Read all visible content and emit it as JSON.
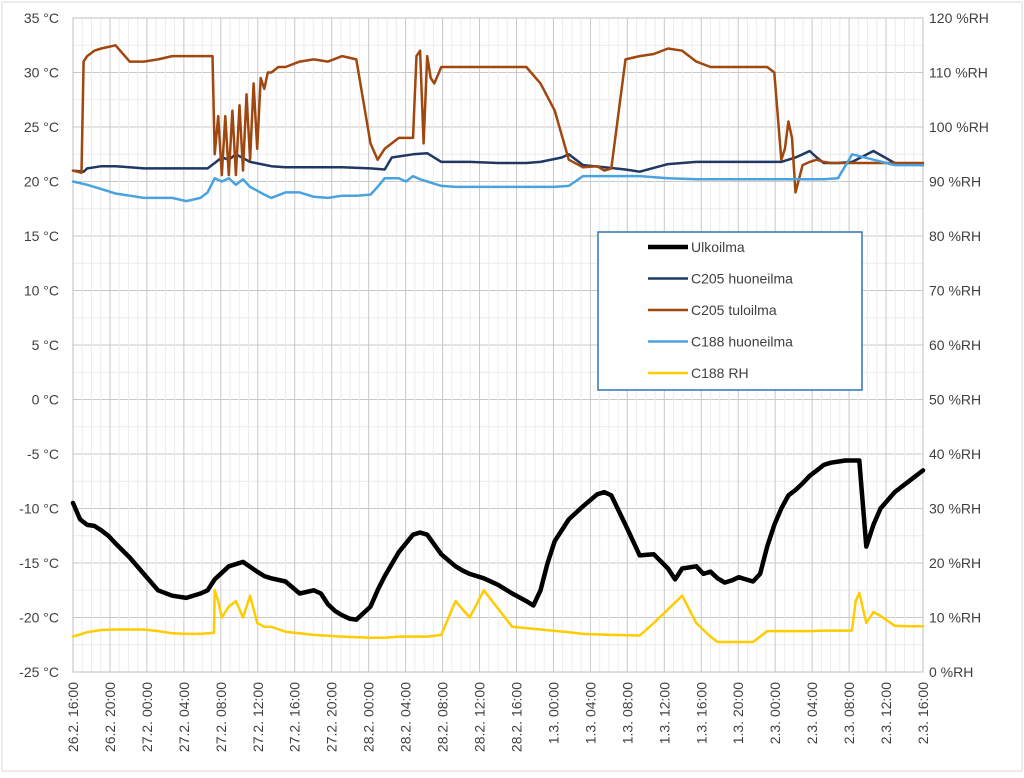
{
  "chart_data": {
    "type": "line",
    "title": "",
    "xlabel": "",
    "ylabel": "",
    "y_axis_left": {
      "unit": "°C",
      "min": -25,
      "max": 35,
      "step": 5,
      "tick_labels": [
        "35 °C",
        "30 °C",
        "25 °C",
        "20 °C",
        "15 °C",
        "10 °C",
        "5 °C",
        "0 °C",
        "-5 °C",
        "-10 °C",
        "-15 °C",
        "-20 °C",
        "-25 °C"
      ]
    },
    "y_axis_right": {
      "unit": "%RH",
      "min": 0,
      "max": 120,
      "step": 10,
      "tick_labels": [
        "120 %RH",
        "110 %RH",
        "100 %RH",
        "90 %RH",
        "80 %RH",
        "70 %RH",
        "60 %RH",
        "50 %RH",
        "40 %RH",
        "30 %RH",
        "20 %RH",
        "10 %RH",
        "0 %RH"
      ]
    },
    "x_axis": {
      "unit": "hours",
      "min": 0,
      "max": 120,
      "tick_labels": [
        "26.2. 16:00",
        "26.2. 20:00",
        "27.2. 00:00",
        "27.2. 04:00",
        "27.2. 08:00",
        "27.2. 12:00",
        "27.2. 16:00",
        "27.2. 20:00",
        "28.2. 00:00",
        "28.2. 04:00",
        "28.2. 08:00",
        "28.2. 12:00",
        "28.2. 16:00",
        "1.3. 00:00",
        "1.3. 04:00",
        "1.3. 08:00",
        "1.3. 12:00",
        "1.3. 16:00",
        "1.3. 20:00",
        "2.3. 00:00",
        "2.3. 04:00",
        "2.3. 08:00",
        "2.3. 12:00",
        "2.3. 16:00"
      ]
    },
    "grid": true,
    "legend": "center-right",
    "series": [
      {
        "name": "Ulkoilma",
        "axis": "left",
        "color": "#000000",
        "width": 4.5,
        "x": [
          0,
          1,
          2,
          3,
          4,
          5,
          6,
          8,
          10,
          12,
          14,
          16,
          18,
          19,
          20,
          22,
          24,
          26,
          27,
          28,
          30,
          32,
          34,
          35,
          36,
          37,
          38,
          39,
          40,
          42,
          43,
          44,
          46,
          48,
          49,
          50,
          52,
          54,
          55,
          56,
          58,
          60,
          62,
          64,
          65,
          66,
          67,
          68,
          70,
          72,
          74,
          75,
          76,
          78,
          80,
          82,
          84,
          85,
          86,
          88,
          89,
          90,
          91,
          92,
          93,
          94,
          95,
          96,
          97,
          98,
          99,
          100,
          101,
          102,
          103,
          104,
          105,
          106,
          107,
          108,
          109,
          110,
          111,
          112,
          113,
          114,
          116,
          118,
          120
        ],
        "y": [
          -9.5,
          -11,
          -11.5,
          -11.6,
          -12,
          -12.5,
          -13.2,
          -14.5,
          -16,
          -17.5,
          -18,
          -18.2,
          -17.8,
          -17.5,
          -16.5,
          -15.3,
          -14.9,
          -15.8,
          -16.2,
          -16.4,
          -16.7,
          -17.8,
          -17.5,
          -17.8,
          -18.8,
          -19.4,
          -19.8,
          -20.1,
          -20.2,
          -19,
          -17.5,
          -16.2,
          -14,
          -12.4,
          -12.2,
          -12.4,
          -14.2,
          -15.3,
          -15.7,
          -16,
          -16.4,
          -17,
          -17.8,
          -18.5,
          -18.9,
          -17.5,
          -15,
          -13,
          -11,
          -9.8,
          -8.7,
          -8.5,
          -8.8,
          -11.5,
          -14.3,
          -14.2,
          -15.5,
          -16.5,
          -15.5,
          -15.3,
          -16,
          -15.8,
          -16.4,
          -16.8,
          -16.6,
          -16.3,
          -16.5,
          -16.7,
          -16,
          -13.5,
          -11.5,
          -10,
          -8.8,
          -8.3,
          -7.7,
          -7,
          -6.5,
          -6,
          -5.8,
          -5.7,
          -5.6,
          -5.6,
          -5.6,
          -13.5,
          -11.5,
          -10,
          -8.5,
          -7.5,
          -6.5
        ],
        "note": ""
      },
      {
        "name": "C205 huoneilma",
        "axis": "left",
        "color": "#1f3864",
        "width": 2.5,
        "x": [
          0,
          1.5,
          2,
          3,
          4,
          6,
          8,
          10,
          14,
          17,
          19,
          20,
          21,
          22,
          23,
          25,
          28,
          30,
          34,
          38,
          42,
          44,
          45,
          48,
          50,
          52,
          56,
          60,
          64,
          66,
          69,
          70,
          72,
          75,
          78,
          80,
          84,
          88,
          90,
          93,
          95,
          97,
          99,
          100,
          101,
          102,
          103,
          104,
          105,
          106,
          107,
          108,
          110,
          113,
          116,
          117,
          118,
          120
        ],
        "y": [
          21,
          20.9,
          21.2,
          21.3,
          21.4,
          21.4,
          21.3,
          21.2,
          21.2,
          21.2,
          21.2,
          21.7,
          22.2,
          22,
          22.5,
          21.8,
          21.4,
          21.3,
          21.3,
          21.3,
          21.2,
          21.1,
          22.2,
          22.5,
          22.6,
          21.8,
          21.8,
          21.7,
          21.7,
          21.8,
          22.2,
          22.5,
          21.5,
          21.3,
          21.1,
          20.9,
          21.6,
          21.8,
          21.8,
          21.8,
          21.8,
          21.8,
          21.8,
          21.8,
          22,
          22.2,
          22.5,
          22.8,
          22.2,
          21.7,
          21.7,
          21.7,
          21.8,
          22.8,
          21.7,
          21.6,
          21.6,
          21.5
        ],
        "note": ""
      },
      {
        "name": "C205 tuloilma",
        "axis": "left",
        "color": "#a0470f",
        "width": 2.5,
        "x": [
          0,
          1.2,
          1.5,
          2,
          3,
          4,
          6,
          8,
          10,
          12,
          14,
          16,
          18,
          19.7,
          20,
          20.5,
          21,
          21.5,
          22,
          22.5,
          23,
          23.5,
          24,
          24.5,
          25,
          25.5,
          26,
          26.5,
          27,
          27.5,
          28,
          29,
          30,
          32,
          34,
          36,
          38,
          40,
          42,
          43,
          44,
          46,
          48,
          48.5,
          49,
          49.5,
          50,
          50.5,
          51,
          52,
          54,
          56,
          58,
          60,
          62,
          64,
          66,
          68,
          70,
          72,
          74,
          75,
          76,
          78,
          80,
          82,
          84,
          86,
          88,
          90,
          92,
          94,
          96,
          98,
          99,
          100,
          100.5,
          101,
          101.5,
          102,
          103,
          104,
          105,
          106,
          107,
          108,
          110,
          113,
          116,
          118,
          120
        ],
        "y": [
          21,
          20.8,
          31,
          31.5,
          32,
          32.2,
          32.5,
          31,
          31,
          31.2,
          31.5,
          31.5,
          31.5,
          31.5,
          22.5,
          26,
          20.6,
          26,
          20.6,
          26.5,
          20.6,
          27,
          21,
          28,
          22,
          29,
          23,
          29.5,
          28.5,
          30,
          30,
          30.5,
          30.5,
          31,
          31.2,
          31,
          31.5,
          31.2,
          23.5,
          22,
          23,
          24,
          24,
          31.5,
          32,
          23.5,
          31.5,
          29.5,
          29,
          30.5,
          30.5,
          30.5,
          30.5,
          30.5,
          30.5,
          30.5,
          29,
          26.5,
          22,
          21.3,
          21.4,
          21,
          21.2,
          31.2,
          31.5,
          31.7,
          32.2,
          32,
          31,
          30.5,
          30.5,
          30.5,
          30.5,
          30.5,
          30,
          22,
          23,
          25.5,
          24,
          19,
          21.5,
          21.8,
          22,
          21.8,
          21.7,
          21.7,
          21.7,
          21.7,
          21.7,
          21.7,
          21.7
        ],
        "note": ""
      },
      {
        "name": "C188 huoneilma",
        "axis": "left",
        "color": "#4aa3df",
        "width": 2.5,
        "x": [
          0,
          2,
          4,
          6,
          8,
          10,
          12,
          14,
          16,
          18,
          19,
          20,
          21,
          22,
          23,
          24,
          25,
          27,
          28,
          30,
          32,
          34,
          36,
          38,
          40,
          42,
          43,
          44,
          46,
          47,
          48,
          49,
          50,
          52,
          54,
          56,
          60,
          64,
          68,
          70,
          72,
          76,
          80,
          84,
          88,
          90,
          92,
          94,
          96,
          98,
          100,
          102,
          104,
          106,
          108,
          110,
          113,
          116,
          118,
          120
        ],
        "y": [
          20,
          19.7,
          19.3,
          18.9,
          18.7,
          18.5,
          18.5,
          18.5,
          18.2,
          18.5,
          19,
          20.3,
          20,
          20.3,
          19.7,
          20.2,
          19.5,
          18.8,
          18.5,
          19,
          19,
          18.6,
          18.5,
          18.7,
          18.7,
          18.8,
          19.5,
          20.3,
          20.3,
          20,
          20.5,
          20.2,
          20,
          19.6,
          19.5,
          19.5,
          19.5,
          19.5,
          19.5,
          19.6,
          20.5,
          20.5,
          20.5,
          20.3,
          20.2,
          20.2,
          20.2,
          20.2,
          20.2,
          20.2,
          20.2,
          20.2,
          20.2,
          20.2,
          20.3,
          22.5,
          22,
          21.5,
          21.5,
          21.5
        ],
        "note": ""
      },
      {
        "name": "C188 RH",
        "axis": "right",
        "color": "#ffcc00",
        "width": 2.5,
        "x": [
          0,
          2,
          4,
          6,
          8,
          10,
          12,
          14,
          16,
          18,
          19.9,
          20,
          20.5,
          21,
          22,
          23,
          24,
          25,
          26,
          27,
          28,
          30,
          34,
          38,
          42,
          44,
          46,
          48,
          50,
          52,
          54,
          56,
          58,
          62,
          66,
          70,
          72,
          74,
          76,
          80,
          82,
          86,
          88,
          90,
          91,
          92,
          94,
          96,
          98,
          100,
          102,
          104,
          106,
          108,
          109.9,
          110,
          110.5,
          111,
          112,
          113,
          114,
          116,
          118,
          120
        ],
        "y": [
          6.5,
          7.3,
          7.7,
          7.8,
          7.8,
          7.8,
          7.5,
          7.1,
          7,
          7,
          7.2,
          15,
          13,
          10,
          12,
          13,
          10,
          14,
          9,
          8.3,
          8.3,
          7.4,
          6.8,
          6.5,
          6.3,
          6.3,
          6.5,
          6.5,
          6.5,
          6.8,
          13,
          10,
          15,
          8.3,
          7.8,
          7.3,
          7,
          6.9,
          6.8,
          6.7,
          9,
          14,
          9,
          6.5,
          5.5,
          5.5,
          5.5,
          5.5,
          7.5,
          7.5,
          7.5,
          7.5,
          7.6,
          7.6,
          7.6,
          8,
          13,
          14.5,
          9,
          11,
          10.3,
          8.5,
          8.4,
          8.4
        ],
        "note": ""
      }
    ]
  }
}
